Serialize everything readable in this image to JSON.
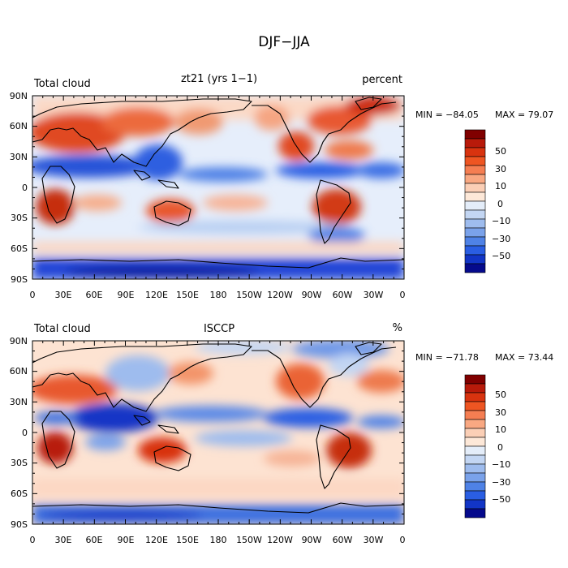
{
  "figure": {
    "title": "DJF−JJA"
  },
  "panels": [
    {
      "left_title": "Total cloud",
      "center_title": "zt21 (yrs 1−1)",
      "right_title": "percent",
      "min_label": "MIN = −84.05",
      "max_label": "MAX =  79.07"
    },
    {
      "left_title": "Total cloud",
      "center_title": "ISCCP",
      "right_title": "%",
      "min_label": "MIN = −71.78",
      "max_label": "MAX =  73.44"
    }
  ],
  "axes": {
    "lat_ticks": [
      "90N",
      "60N",
      "30N",
      "0",
      "30S",
      "60S",
      "90S"
    ],
    "lon_ticks": [
      "0",
      "30E",
      "60E",
      "90E",
      "120E",
      "150E",
      "180",
      "150W",
      "120W",
      "90W",
      "60W",
      "30W",
      "0"
    ]
  },
  "colorbar": {
    "labels": [
      "50",
      "30",
      "10",
      "0",
      "−10",
      "−30",
      "−50"
    ],
    "colors": [
      "#800000",
      "#b81a0a",
      "#d8330f",
      "#ee5522",
      "#f57e52",
      "#f9a882",
      "#fbcfb6",
      "#fde8d8",
      "#e4edf9",
      "#c3d6f3",
      "#9ebcee",
      "#7aa2ea",
      "#4f82e6",
      "#2a5ee3",
      "#1235c6",
      "#050a8c"
    ]
  },
  "colors": {
    "warm": "#e4532b",
    "cool": "#3d6fe0",
    "coast": "#000000"
  }
}
